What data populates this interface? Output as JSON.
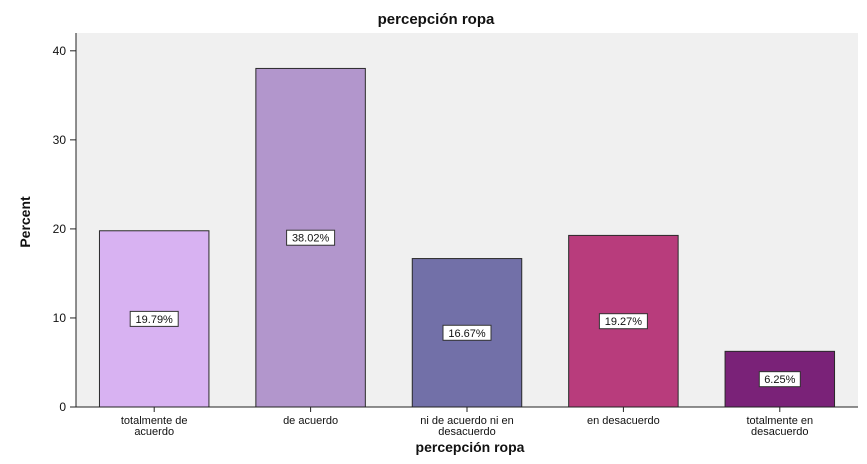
{
  "chart_data": {
    "type": "bar",
    "title": "percepción ropa",
    "xlabel": "percepción ropa",
    "ylabel": "Percent",
    "ylim": [
      0,
      42
    ],
    "yticks": [
      0,
      10,
      20,
      30,
      40
    ],
    "grid": false,
    "legend": "none",
    "categories": [
      [
        "totalmente de",
        "acuerdo"
      ],
      [
        "de acuerdo"
      ],
      [
        "ni de acuerdo ni en",
        "desacuerdo"
      ],
      [
        "en desacuerdo"
      ],
      [
        "totalmente en",
        "desacuerdo"
      ]
    ],
    "values": [
      19.79,
      38.02,
      16.67,
      19.27,
      6.25
    ],
    "data_labels": [
      "19.79%",
      "38.02%",
      "16.67%",
      "19.27%",
      "6.25%"
    ],
    "colors": [
      "#d8b2f2",
      "#b296cc",
      "#7270a8",
      "#b83c7c",
      "#7a2278"
    ],
    "plot_background": "#f0f0f0"
  }
}
